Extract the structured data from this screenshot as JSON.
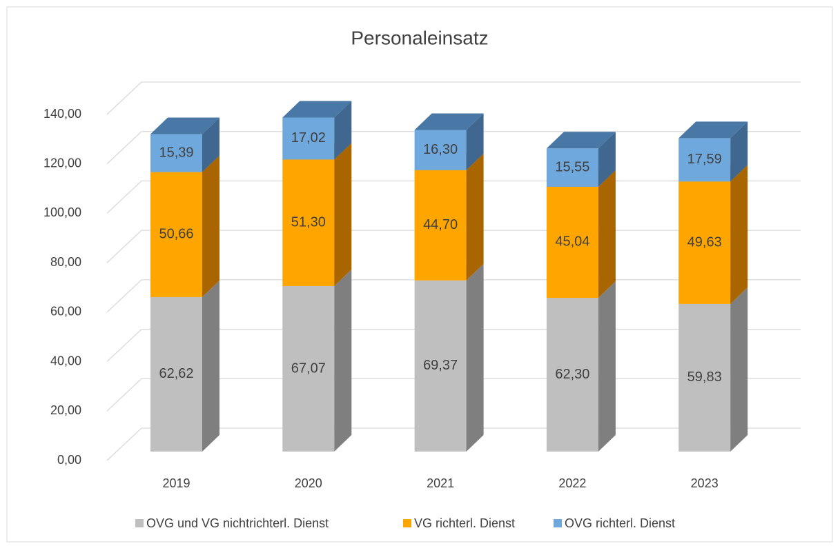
{
  "chart_data": {
    "type": "bar3d_stacked",
    "title": "Personaleinsatz",
    "categories": [
      "2019",
      "2020",
      "2021",
      "2022",
      "2023"
    ],
    "series": [
      {
        "name": "OVG und VG nichtrichterl. Dienst",
        "color": "#bfbfbf",
        "side_color": "#7f7f7f",
        "top_color": "#d9d9d9",
        "values": [
          62.62,
          67.07,
          69.37,
          62.3,
          59.83
        ],
        "value_labels": [
          "62,62",
          "67,07",
          "69,37",
          "62,30",
          "59,83"
        ]
      },
      {
        "name": "VG richterl. Dienst",
        "color": "#ffa500",
        "side_color": "#a86500",
        "top_color": "#c98200",
        "values": [
          50.66,
          51.3,
          44.7,
          45.04,
          49.63
        ],
        "value_labels": [
          "50,66",
          "51,30",
          "44,70",
          "45,04",
          "49,63"
        ]
      },
      {
        "name": "OVG richterl. Dienst",
        "color": "#6fa8dc",
        "side_color": "#40678f",
        "top_color": "#4a78a6",
        "values": [
          15.39,
          17.02,
          16.3,
          15.55,
          17.59
        ],
        "value_labels": [
          "15,39",
          "17,02",
          "16,30",
          "15,55",
          "17,59"
        ]
      }
    ],
    "ylim": [
      0,
      140
    ],
    "yticks": [
      {
        "value": 0,
        "label": "0,00"
      },
      {
        "value": 20,
        "label": "20,00"
      },
      {
        "value": 40,
        "label": "40,00"
      },
      {
        "value": 60,
        "label": "60,00"
      },
      {
        "value": 80,
        "label": "80,00"
      },
      {
        "value": 100,
        "label": "100,00"
      },
      {
        "value": 120,
        "label": "120,00"
      },
      {
        "value": 140,
        "label": "140,00"
      }
    ],
    "grid": true,
    "legend": "bottom"
  }
}
